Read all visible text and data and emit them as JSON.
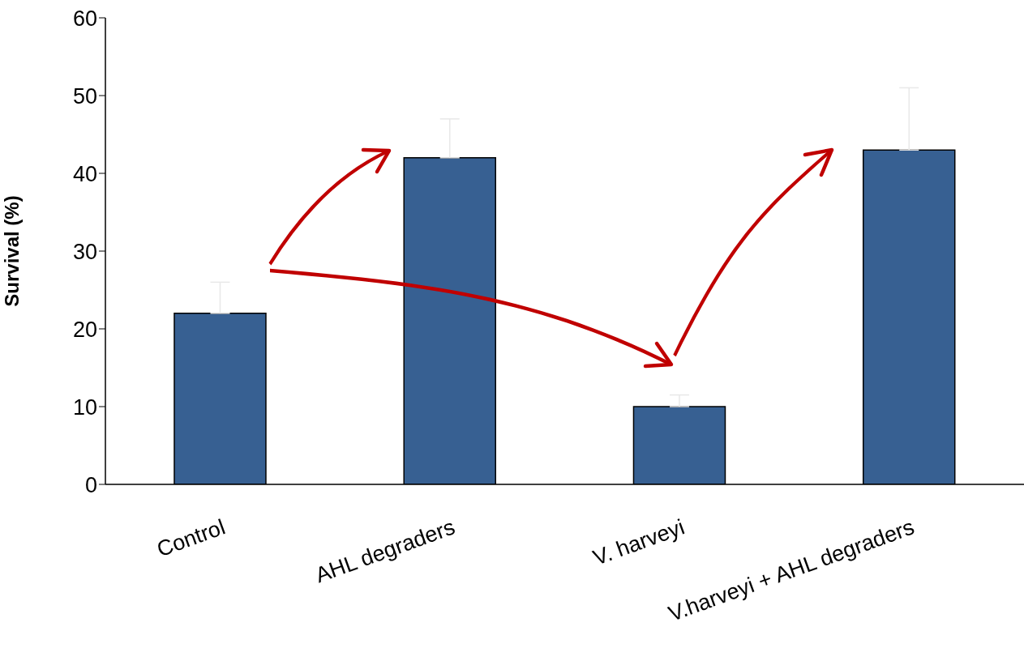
{
  "chart_data": {
    "type": "bar",
    "ylabel": "Survival (%)",
    "categories": [
      "Control",
      "AHL degraders",
      "V. harveyi",
      "V.harveyi + AHL degraders"
    ],
    "values": [
      22,
      42,
      10,
      43
    ],
    "errors": [
      [
        22,
        26
      ],
      [
        42,
        47
      ],
      [
        10,
        11.5
      ],
      [
        43,
        51
      ]
    ],
    "color": "#376092",
    "ylim": [
      0,
      60
    ],
    "yticks": [
      0,
      10,
      20,
      30,
      40,
      50,
      60
    ],
    "grid": false,
    "legend": false
  }
}
